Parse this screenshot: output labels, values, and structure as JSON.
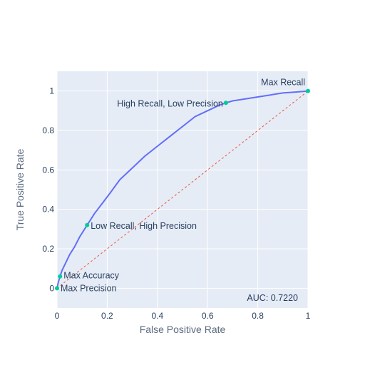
{
  "chart_data": {
    "type": "line",
    "xlabel": "False Positive Rate",
    "ylabel": "True Positive Rate",
    "xlim": [
      0,
      1
    ],
    "ylim": [
      -0.1,
      1.1
    ],
    "xticks": [
      "0",
      "0.2",
      "0.4",
      "0.6",
      "0.8",
      "1"
    ],
    "yticks": [
      "0",
      "0.2",
      "0.4",
      "0.6",
      "0.8",
      "1"
    ],
    "grid": true,
    "colors": {
      "plot_bg": "#e5ecf6",
      "grid": "#ffffff",
      "curve": "#636efa",
      "diagonal": "#ef553b",
      "marker": "#00cc96"
    },
    "series": [
      {
        "x": [
          0,
          0.005,
          0.012,
          0.02,
          0.035,
          0.05,
          0.07,
          0.09,
          0.12,
          0.15,
          0.18,
          0.21,
          0.25,
          0.3,
          0.35,
          0.4,
          0.45,
          0.5,
          0.55,
          0.6,
          0.65,
          0.673,
          0.7,
          0.75,
          0.8,
          0.85,
          0.9,
          0.95,
          1.0
        ],
        "y": [
          0,
          0.03,
          0.06,
          0.09,
          0.13,
          0.17,
          0.21,
          0.26,
          0.32,
          0.38,
          0.43,
          0.48,
          0.55,
          0.61,
          0.67,
          0.72,
          0.77,
          0.82,
          0.87,
          0.9,
          0.93,
          0.94,
          0.95,
          0.96,
          0.97,
          0.98,
          0.99,
          0.995,
          1.0
        ]
      },
      {
        "x": [
          0,
          1
        ],
        "y": [
          0,
          1
        ]
      }
    ],
    "annotations": [
      {
        "text": "Max Recall",
        "x": 1.0,
        "y": 1.0
      },
      {
        "text": "High Recall, Low Precision",
        "x": 0.673,
        "y": 0.94
      },
      {
        "text": "Low Recall, High Precision",
        "x": 0.12,
        "y": 0.32
      },
      {
        "text": "Max Accuracy",
        "x": 0.012,
        "y": 0.06
      },
      {
        "text": "Max Precision",
        "x": 0.0,
        "y": 0.0
      }
    ],
    "auc_text": "AUC: 0.7220"
  }
}
